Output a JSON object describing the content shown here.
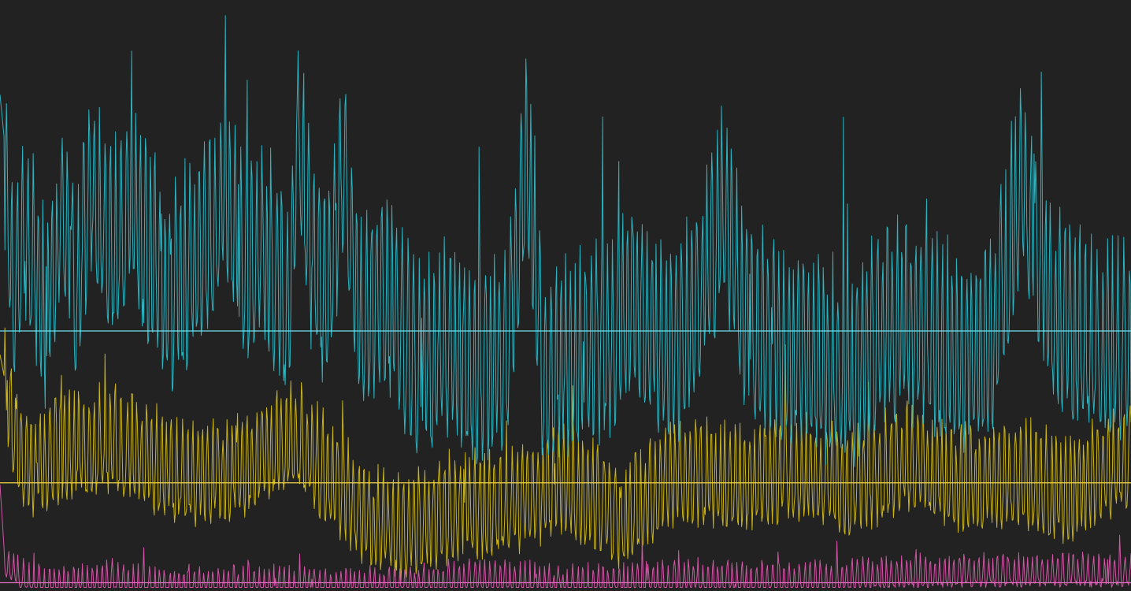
{
  "colors": {
    "background": "#222222",
    "cyan": "#2bb3c0",
    "yellow": "#c9b319",
    "magenta": "#d255a6",
    "cyan_reference": "#6fe3ee",
    "yellow_reference": "#f2d84a",
    "magenta_reference": "#e070c0"
  },
  "chart_data": {
    "type": "line",
    "title": "",
    "xlabel": "",
    "ylabel": "",
    "grid": false,
    "legend": "none",
    "x_range": [
      0,
      1000
    ],
    "ylim": [
      0,
      100
    ],
    "series": [
      {
        "color": "cyan",
        "mean": 44,
        "spread": 30,
        "floor": 8,
        "ceiling": 99,
        "reference": 44.0,
        "samples": [
          [
            0,
            84
          ],
          [
            6,
            72
          ],
          [
            12,
            55
          ],
          [
            20,
            62
          ],
          [
            30,
            58
          ],
          [
            40,
            50
          ],
          [
            55,
            66
          ],
          [
            70,
            54
          ],
          [
            80,
            75
          ],
          [
            95,
            60
          ],
          [
            115,
            70
          ],
          [
            130,
            62
          ],
          [
            150,
            52
          ],
          [
            175,
            60
          ],
          [
            200,
            70
          ],
          [
            215,
            58
          ],
          [
            230,
            62
          ],
          [
            255,
            52
          ],
          [
            265,
            81
          ],
          [
            275,
            60
          ],
          [
            290,
            53
          ],
          [
            303,
            74
          ],
          [
            320,
            48
          ],
          [
            340,
            55
          ],
          [
            370,
            40
          ],
          [
            400,
            46
          ],
          [
            420,
            38
          ],
          [
            450,
            44
          ],
          [
            466,
            80
          ],
          [
            480,
            40
          ],
          [
            510,
            42
          ],
          [
            540,
            46
          ],
          [
            560,
            52
          ],
          [
            580,
            47
          ],
          [
            600,
            44
          ],
          [
            620,
            54
          ],
          [
            640,
            68
          ],
          [
            660,
            48
          ],
          [
            690,
            45
          ],
          [
            720,
            42
          ],
          [
            755,
            40
          ],
          [
            780,
            47
          ],
          [
            800,
            49
          ],
          [
            830,
            44
          ],
          [
            860,
            42
          ],
          [
            880,
            47
          ],
          [
            903,
            74
          ],
          [
            930,
            50
          ],
          [
            960,
            46
          ],
          [
            990,
            44
          ]
        ]
      },
      {
        "color": "yellow",
        "mean": 22,
        "spread": 16,
        "floor": 1,
        "ceiling": 78,
        "reference": 18.3,
        "samples": [
          [
            0,
            40
          ],
          [
            8,
            32
          ],
          [
            15,
            26
          ],
          [
            30,
            23
          ],
          [
            60,
            26
          ],
          [
            100,
            27
          ],
          [
            150,
            22
          ],
          [
            200,
            21
          ],
          [
            260,
            28
          ],
          [
            300,
            19
          ],
          [
            330,
            13
          ],
          [
            350,
            12
          ],
          [
            400,
            15
          ],
          [
            450,
            16
          ],
          [
            500,
            20
          ],
          [
            550,
            14
          ],
          [
            600,
            22
          ],
          [
            650,
            20
          ],
          [
            700,
            22
          ],
          [
            750,
            19
          ],
          [
            800,
            24
          ],
          [
            850,
            20
          ],
          [
            900,
            21
          ],
          [
            950,
            18
          ],
          [
            1000,
            25
          ]
        ]
      },
      {
        "color": "magenta",
        "mean": 2.5,
        "spread": 5,
        "floor": 0.6,
        "ceiling": 18,
        "reference": 1.4,
        "samples": [
          [
            0,
            18
          ],
          [
            4,
            6
          ],
          [
            20,
            3
          ],
          [
            40,
            2
          ],
          [
            80,
            2
          ],
          [
            100,
            3
          ],
          [
            150,
            1.5
          ],
          [
            200,
            2
          ],
          [
            300,
            1.5
          ],
          [
            380,
            2
          ],
          [
            420,
            3
          ],
          [
            500,
            2
          ],
          [
            600,
            3
          ],
          [
            700,
            2.5
          ],
          [
            800,
            3.5
          ],
          [
            900,
            4
          ],
          [
            1000,
            4
          ]
        ]
      }
    ]
  }
}
